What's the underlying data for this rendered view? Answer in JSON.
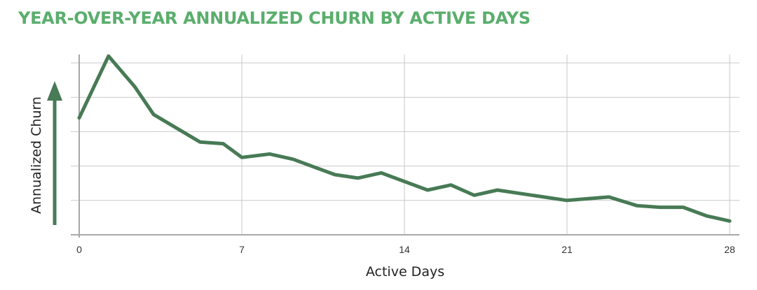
{
  "chart_data": {
    "type": "line",
    "title": "YEAR-OVER-YEAR ANNUALIZED CHURN BY ACTIVE DAYS",
    "xlabel": "Active Days",
    "ylabel": "Annualized Churn",
    "xlim": [
      0,
      28
    ],
    "ylim": [
      0,
      5
    ],
    "x_ticks": [
      0,
      7,
      14,
      21,
      28
    ],
    "y_tick_labels_shown": false,
    "y_axis_note": "unitless — no tick labels; upward arrow indicates increasing churn",
    "grid": true,
    "legend": "none",
    "series": [
      {
        "x": [
          0,
          1.26,
          2.4,
          3.2,
          5.2,
          6.2,
          7.0,
          8.2,
          9.2,
          11.0,
          12.0,
          13.0,
          15.0,
          16.0,
          17.0,
          18.0,
          20.0,
          21.0,
          22.8,
          24.0,
          25.0,
          26.0,
          27.0,
          28.0
        ],
        "y": [
          3.4,
          5.2,
          4.3,
          3.5,
          2.7,
          2.65,
          2.25,
          2.35,
          2.2,
          1.75,
          1.65,
          1.8,
          1.3,
          1.45,
          1.15,
          1.3,
          1.1,
          1.0,
          1.1,
          0.85,
          0.8,
          0.8,
          0.55,
          0.4
        ]
      }
    ]
  },
  "colors": {
    "title": "#5aae6c",
    "line": "#477a55",
    "arrow": "#477a55",
    "grid": "#c9c9c9",
    "axis": "#a8a8a8"
  }
}
